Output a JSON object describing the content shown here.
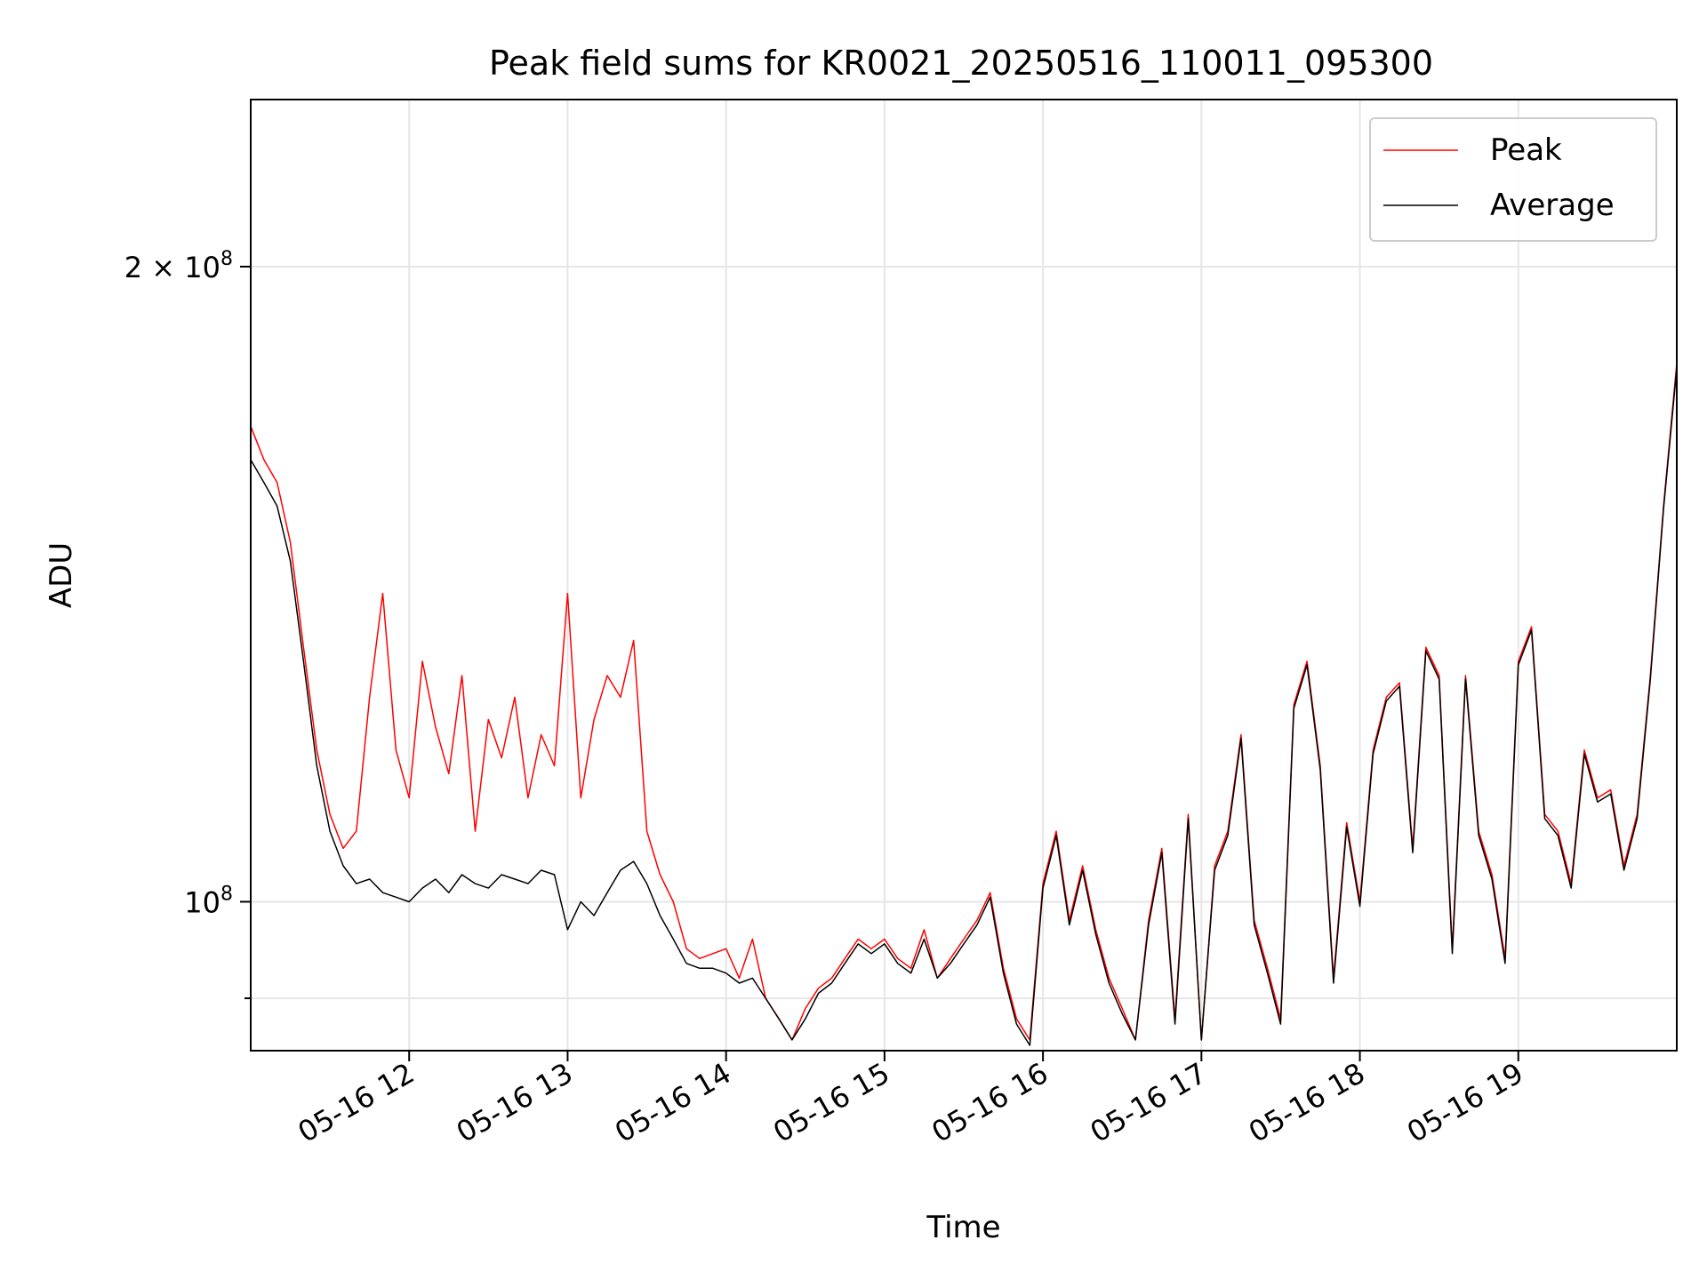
{
  "chart_data": {
    "type": "line",
    "title": "Peak field sums for KR0021_20250516_110011_095300",
    "xlabel": "Time",
    "ylabel": "ADU",
    "yscale": "log",
    "xlim": [
      "2025-05-16T11:00",
      "2025-05-16T20:00"
    ],
    "ylim": [
      85000000,
      240000000
    ],
    "grid": true,
    "legend_position": "top-right",
    "x_ticks": [
      {
        "value": "2025-05-16T12:00",
        "label": "05-16 12"
      },
      {
        "value": "2025-05-16T13:00",
        "label": "05-16 13"
      },
      {
        "value": "2025-05-16T14:00",
        "label": "05-16 14"
      },
      {
        "value": "2025-05-16T15:00",
        "label": "05-16 15"
      },
      {
        "value": "2025-05-16T16:00",
        "label": "05-16 16"
      },
      {
        "value": "2025-05-16T17:00",
        "label": "05-16 17"
      },
      {
        "value": "2025-05-16T18:00",
        "label": "05-16 18"
      },
      {
        "value": "2025-05-16T19:00",
        "label": "05-16 19"
      }
    ],
    "y_ticks": [
      {
        "value": 100000000,
        "base": "10",
        "exp": "8",
        "mantissa": ""
      },
      {
        "value": 200000000,
        "base": "10",
        "exp": "8",
        "mantissa": "2"
      }
    ],
    "y_minor_ticks": [
      90000000
    ],
    "series": [
      {
        "name": "Peak",
        "color": "#ff0000",
        "x": [
          "2025-05-16T11:00",
          "2025-05-16T11:05",
          "2025-05-16T11:10",
          "2025-05-16T11:15",
          "2025-05-16T11:20",
          "2025-05-16T11:25",
          "2025-05-16T11:30",
          "2025-05-16T11:35",
          "2025-05-16T11:40",
          "2025-05-16T11:45",
          "2025-05-16T11:50",
          "2025-05-16T11:55",
          "2025-05-16T12:00",
          "2025-05-16T12:05",
          "2025-05-16T12:10",
          "2025-05-16T12:15",
          "2025-05-16T12:20",
          "2025-05-16T12:25",
          "2025-05-16T12:30",
          "2025-05-16T12:35",
          "2025-05-16T12:40",
          "2025-05-16T12:45",
          "2025-05-16T12:50",
          "2025-05-16T12:55",
          "2025-05-16T13:00",
          "2025-05-16T13:05",
          "2025-05-16T13:10",
          "2025-05-16T13:15",
          "2025-05-16T13:20",
          "2025-05-16T13:25",
          "2025-05-16T13:30",
          "2025-05-16T13:35",
          "2025-05-16T13:40",
          "2025-05-16T13:45",
          "2025-05-16T13:50",
          "2025-05-16T13:55",
          "2025-05-16T14:00",
          "2025-05-16T14:05",
          "2025-05-16T14:10",
          "2025-05-16T14:15",
          "2025-05-16T14:20",
          "2025-05-16T14:25",
          "2025-05-16T14:30",
          "2025-05-16T14:35",
          "2025-05-16T14:40",
          "2025-05-16T14:45",
          "2025-05-16T14:50",
          "2025-05-16T14:55",
          "2025-05-16T15:00",
          "2025-05-16T15:05",
          "2025-05-16T15:10",
          "2025-05-16T15:15",
          "2025-05-16T15:20",
          "2025-05-16T15:25",
          "2025-05-16T15:30",
          "2025-05-16T15:35",
          "2025-05-16T15:40",
          "2025-05-16T15:45",
          "2025-05-16T15:50",
          "2025-05-16T15:55",
          "2025-05-16T16:00",
          "2025-05-16T16:05",
          "2025-05-16T16:10",
          "2025-05-16T16:15",
          "2025-05-16T16:20",
          "2025-05-16T16:25",
          "2025-05-16T16:30",
          "2025-05-16T16:35",
          "2025-05-16T16:40",
          "2025-05-16T16:45",
          "2025-05-16T16:50",
          "2025-05-16T16:55",
          "2025-05-16T17:00",
          "2025-05-16T17:05",
          "2025-05-16T17:10",
          "2025-05-16T17:15",
          "2025-05-16T17:20",
          "2025-05-16T17:25",
          "2025-05-16T17:30",
          "2025-05-16T17:35",
          "2025-05-16T17:40",
          "2025-05-16T17:45",
          "2025-05-16T17:50",
          "2025-05-16T17:55",
          "2025-05-16T18:00",
          "2025-05-16T18:05",
          "2025-05-16T18:10",
          "2025-05-16T18:15",
          "2025-05-16T18:20",
          "2025-05-16T18:25",
          "2025-05-16T18:30",
          "2025-05-16T18:35",
          "2025-05-16T18:40",
          "2025-05-16T18:45",
          "2025-05-16T18:50",
          "2025-05-16T18:55",
          "2025-05-16T19:00",
          "2025-05-16T19:05",
          "2025-05-16T19:10",
          "2025-05-16T19:15",
          "2025-05-16T19:20",
          "2025-05-16T19:25",
          "2025-05-16T19:30",
          "2025-05-16T19:35",
          "2025-05-16T19:40",
          "2025-05-16T19:45",
          "2025-05-16T19:50",
          "2025-05-16T19:55",
          "2025-05-16T20:00"
        ],
        "values": [
          168000000,
          162000000,
          158000000,
          148000000,
          132000000,
          118000000,
          110000000,
          106000000,
          108000000,
          125000000,
          140000000,
          118000000,
          112000000,
          130000000,
          121000000,
          115000000,
          128000000,
          108000000,
          122000000,
          117000000,
          125000000,
          112000000,
          120000000,
          116000000,
          140000000,
          112000000,
          122000000,
          128000000,
          125000000,
          133000000,
          108000000,
          103000000,
          100000000,
          95000000,
          94000000,
          94500000,
          95000000,
          92000000,
          96000000,
          90000000,
          88000000,
          86000000,
          89000000,
          91000000,
          92000000,
          94000000,
          96000000,
          95000000,
          96000000,
          94000000,
          93000000,
          97000000,
          92000000,
          94000000,
          96000000,
          98000000,
          101000000,
          93000000,
          88000000,
          86000000,
          102000000,
          108000000,
          98000000,
          104000000,
          97000000,
          92000000,
          89000000,
          86000000,
          98000000,
          106000000,
          88000000,
          110000000,
          86000000,
          104000000,
          108000000,
          120000000,
          98000000,
          93000000,
          88000000,
          124000000,
          130000000,
          116000000,
          92000000,
          109000000,
          100000000,
          118000000,
          125000000,
          127000000,
          106000000,
          132000000,
          128000000,
          95000000,
          128000000,
          108000000,
          103000000,
          94000000,
          130000000,
          135000000,
          110000000,
          108000000,
          102000000,
          118000000,
          112000000,
          113000000,
          104000000,
          110000000,
          128000000,
          154000000,
          180000000
        ]
      },
      {
        "name": "Average",
        "color": "#000000",
        "x": [
          "2025-05-16T11:00",
          "2025-05-16T11:05",
          "2025-05-16T11:10",
          "2025-05-16T11:15",
          "2025-05-16T11:20",
          "2025-05-16T11:25",
          "2025-05-16T11:30",
          "2025-05-16T11:35",
          "2025-05-16T11:40",
          "2025-05-16T11:45",
          "2025-05-16T11:50",
          "2025-05-16T11:55",
          "2025-05-16T12:00",
          "2025-05-16T12:05",
          "2025-05-16T12:10",
          "2025-05-16T12:15",
          "2025-05-16T12:20",
          "2025-05-16T12:25",
          "2025-05-16T12:30",
          "2025-05-16T12:35",
          "2025-05-16T12:40",
          "2025-05-16T12:45",
          "2025-05-16T12:50",
          "2025-05-16T12:55",
          "2025-05-16T13:00",
          "2025-05-16T13:05",
          "2025-05-16T13:10",
          "2025-05-16T13:15",
          "2025-05-16T13:20",
          "2025-05-16T13:25",
          "2025-05-16T13:30",
          "2025-05-16T13:35",
          "2025-05-16T13:40",
          "2025-05-16T13:45",
          "2025-05-16T13:50",
          "2025-05-16T13:55",
          "2025-05-16T14:00",
          "2025-05-16T14:05",
          "2025-05-16T14:10",
          "2025-05-16T14:15",
          "2025-05-16T14:20",
          "2025-05-16T14:25",
          "2025-05-16T14:30",
          "2025-05-16T14:35",
          "2025-05-16T14:40",
          "2025-05-16T14:45",
          "2025-05-16T14:50",
          "2025-05-16T14:55",
          "2025-05-16T15:00",
          "2025-05-16T15:05",
          "2025-05-16T15:10",
          "2025-05-16T15:15",
          "2025-05-16T15:20",
          "2025-05-16T15:25",
          "2025-05-16T15:30",
          "2025-05-16T15:35",
          "2025-05-16T15:40",
          "2025-05-16T15:45",
          "2025-05-16T15:50",
          "2025-05-16T15:55",
          "2025-05-16T16:00",
          "2025-05-16T16:05",
          "2025-05-16T16:10",
          "2025-05-16T16:15",
          "2025-05-16T16:20",
          "2025-05-16T16:25",
          "2025-05-16T16:30",
          "2025-05-16T16:35",
          "2025-05-16T16:40",
          "2025-05-16T16:45",
          "2025-05-16T16:50",
          "2025-05-16T16:55",
          "2025-05-16T17:00",
          "2025-05-16T17:05",
          "2025-05-16T17:10",
          "2025-05-16T17:15",
          "2025-05-16T17:20",
          "2025-05-16T17:25",
          "2025-05-16T17:30",
          "2025-05-16T17:35",
          "2025-05-16T17:40",
          "2025-05-16T17:45",
          "2025-05-16T17:50",
          "2025-05-16T17:55",
          "2025-05-16T18:00",
          "2025-05-16T18:05",
          "2025-05-16T18:10",
          "2025-05-16T18:15",
          "2025-05-16T18:20",
          "2025-05-16T18:25",
          "2025-05-16T18:30",
          "2025-05-16T18:35",
          "2025-05-16T18:40",
          "2025-05-16T18:45",
          "2025-05-16T18:50",
          "2025-05-16T18:55",
          "2025-05-16T19:00",
          "2025-05-16T19:05",
          "2025-05-16T19:10",
          "2025-05-16T19:15",
          "2025-05-16T19:20",
          "2025-05-16T19:25",
          "2025-05-16T19:30",
          "2025-05-16T19:35",
          "2025-05-16T19:40",
          "2025-05-16T19:45",
          "2025-05-16T19:50",
          "2025-05-16T19:55",
          "2025-05-16T20:00"
        ],
        "values": [
          162000000,
          158000000,
          154000000,
          145000000,
          130000000,
          116000000,
          108000000,
          104000000,
          102000000,
          102500000,
          101000000,
          100500000,
          100000000,
          101500000,
          102500000,
          101000000,
          103000000,
          102000000,
          101500000,
          103000000,
          102500000,
          102000000,
          103500000,
          103000000,
          97000000,
          100000000,
          98500000,
          101000000,
          103500000,
          104500000,
          102000000,
          98500000,
          96000000,
          93500000,
          93000000,
          93000000,
          92500000,
          91500000,
          92000000,
          90000000,
          88000000,
          86000000,
          88000000,
          90500000,
          91500000,
          93500000,
          95500000,
          94500000,
          95500000,
          93500000,
          92500000,
          96000000,
          92000000,
          93500000,
          95500000,
          97500000,
          100500000,
          92500000,
          87500000,
          85500000,
          101500000,
          107500000,
          97500000,
          103500000,
          96500000,
          91500000,
          88500000,
          86000000,
          97500000,
          105500000,
          87500000,
          109500000,
          86000000,
          103500000,
          107500000,
          119500000,
          97500000,
          92500000,
          87500000,
          123500000,
          129500000,
          115500000,
          91500000,
          108500000,
          99500000,
          117500000,
          124500000,
          126500000,
          105500000,
          131500000,
          127500000,
          94500000,
          127500000,
          107500000,
          102500000,
          93500000,
          129500000,
          134500000,
          109500000,
          107500000,
          101500000,
          117500000,
          111500000,
          112500000,
          103500000,
          109500000,
          127500000,
          153500000,
          179000000
        ]
      }
    ]
  }
}
